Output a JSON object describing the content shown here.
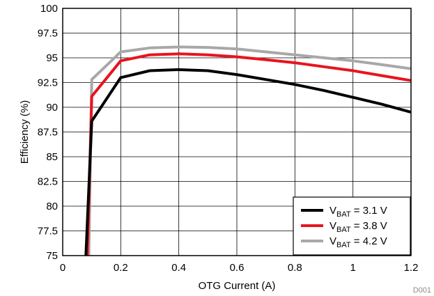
{
  "figure_id": "D001",
  "chart_data": {
    "type": "line",
    "xlabel": "OTG Current (A)",
    "ylabel": "Efficiency (%)",
    "xlim": [
      0,
      1.2
    ],
    "ylim": [
      75,
      100
    ],
    "xticks": [
      0,
      0.2,
      0.4,
      0.6,
      0.8,
      1,
      1.2
    ],
    "xtick_labels": [
      "0",
      "0.2",
      "0.4",
      "0.6",
      "0.8",
      "1",
      "1.2"
    ],
    "yticks": [
      75,
      77.5,
      80,
      82.5,
      85,
      87.5,
      90,
      92.5,
      95,
      97.5,
      100
    ],
    "ytick_labels": [
      "75",
      "77.5",
      "80",
      "82.5",
      "85",
      "87.5",
      "90",
      "92.5",
      "95",
      "97.5",
      "100"
    ],
    "grid": true,
    "legend_position": "bottom-right",
    "series": [
      {
        "name_main": "V",
        "name_sub": "BAT",
        "name_rest": " = 3.1 V",
        "color": "#000000",
        "x": [
          0.08,
          0.1,
          0.2,
          0.3,
          0.4,
          0.5,
          0.6,
          0.7,
          0.8,
          0.9,
          1.0,
          1.1,
          1.2
        ],
        "y": [
          75,
          88.6,
          93.0,
          93.7,
          93.8,
          93.7,
          93.3,
          92.8,
          92.3,
          91.7,
          91.0,
          90.3,
          89.5
        ]
      },
      {
        "name_main": "V",
        "name_sub": "BAT",
        "name_rest": " = 3.8 V",
        "color": "#e8141e",
        "x": [
          0.085,
          0.1,
          0.2,
          0.3,
          0.4,
          0.5,
          0.6,
          0.7,
          0.8,
          0.9,
          1.0,
          1.1,
          1.2
        ],
        "y": [
          75,
          91.1,
          94.7,
          95.3,
          95.4,
          95.3,
          95.1,
          94.8,
          94.5,
          94.1,
          93.7,
          93.2,
          92.7
        ]
      },
      {
        "name_main": "V",
        "name_sub": "BAT",
        "name_rest": " = 4.2 V",
        "color": "#a8a8a8",
        "x": [
          0.09,
          0.1,
          0.2,
          0.3,
          0.4,
          0.5,
          0.6,
          0.7,
          0.8,
          0.9,
          1.0,
          1.1,
          1.2
        ],
        "y": [
          75,
          92.8,
          95.6,
          96.0,
          96.1,
          96.05,
          95.9,
          95.6,
          95.3,
          95.0,
          94.7,
          94.3,
          93.9
        ]
      }
    ]
  }
}
